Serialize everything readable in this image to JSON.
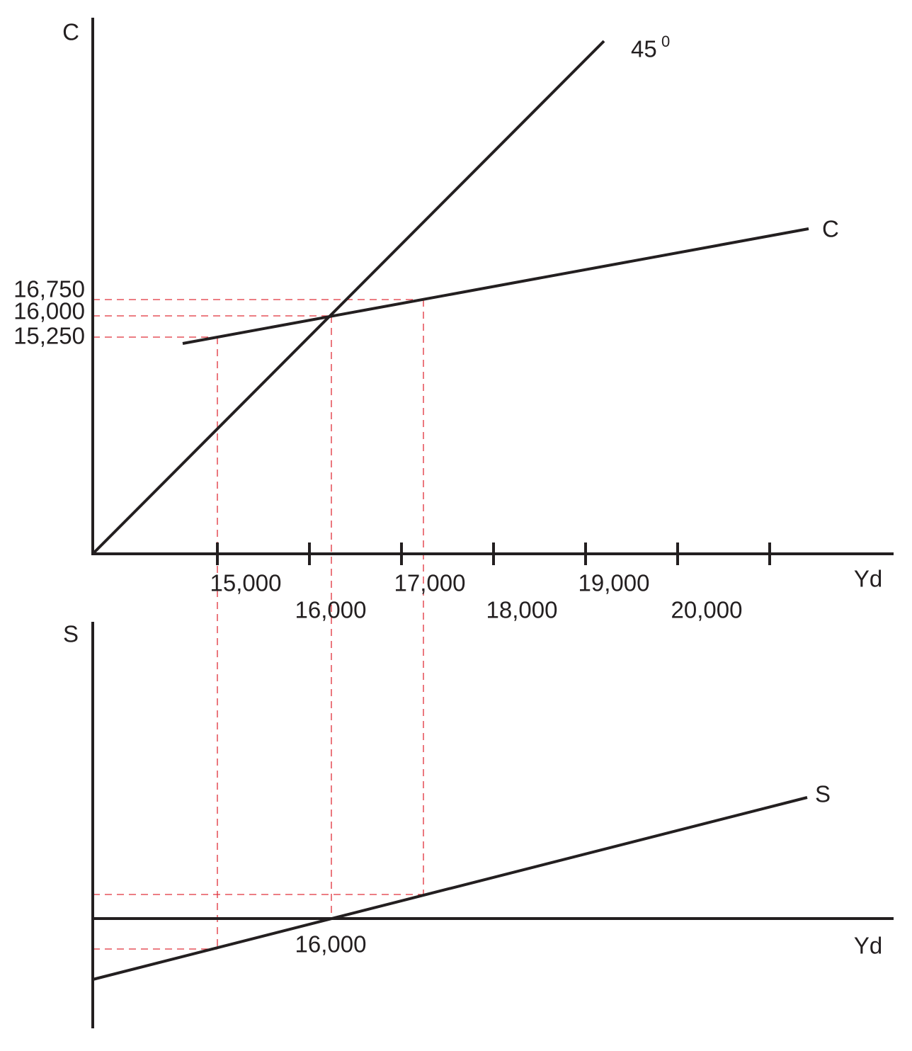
{
  "top": {
    "y_axis_label": "C",
    "x_axis_label": "Yd",
    "line_45_label": "45",
    "line_45_superscript": "0",
    "c_line_label": "C",
    "y_labels": [
      "16,750",
      "16,000",
      "15,250"
    ],
    "x_labels": [
      "15,000",
      "16,000",
      "17,000",
      "18,000",
      "19,000",
      "20,000"
    ]
  },
  "bottom": {
    "y_axis_label": "S",
    "x_axis_label": "Yd",
    "s_line_label": "S",
    "x_label": "16,000"
  }
}
